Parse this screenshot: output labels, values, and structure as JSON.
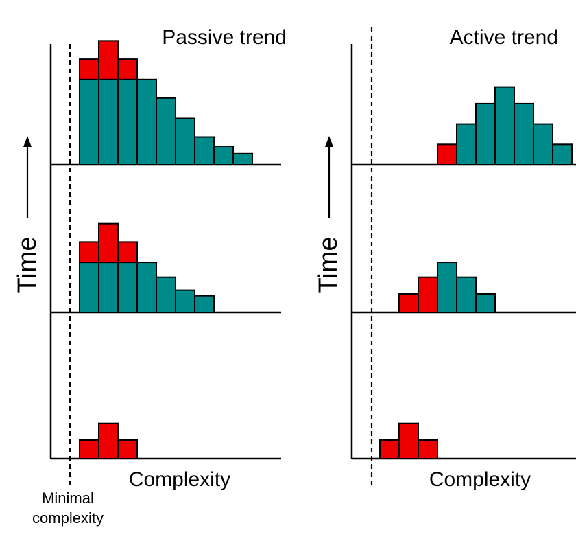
{
  "colors": {
    "background": "#ffffff",
    "red": "#ee0000",
    "teal": "#008b8b",
    "stroke": "#000000"
  },
  "left_panel": {
    "title": "Passive trend",
    "ylabel": "Time",
    "xlabel": "Complexity",
    "minimal_label_line1": "Minimal",
    "minimal_label_line2": "complexity",
    "rows": [
      {
        "red": [
          1,
          1.9,
          1
        ],
        "teal": [
          0,
          0,
          0,
          0,
          0,
          0,
          0,
          0,
          0
        ]
      },
      {
        "red": [
          1,
          1.9,
          1
        ],
        "teal": [
          2.7,
          2.7,
          2.7,
          2.7,
          1.9,
          1.2,
          0.9,
          0,
          0
        ]
      },
      {
        "red": [
          1,
          1.9,
          1
        ],
        "teal": [
          4.6,
          4.6,
          4.6,
          4.6,
          3.6,
          2.5,
          1.5,
          1.0,
          0.6
        ]
      }
    ]
  },
  "right_panel": {
    "title": "Active trend",
    "ylabel": "Time",
    "xlabel": "Complexity",
    "rows": [
      {
        "bars": [
          {
            "col": 0,
            "h": 1.0,
            "c": "red"
          },
          {
            "col": 1,
            "h": 1.9,
            "c": "red"
          },
          {
            "col": 2,
            "h": 1.0,
            "c": "red"
          }
        ]
      },
      {
        "bars": [
          {
            "col": 1,
            "h": 1.0,
            "c": "red"
          },
          {
            "col": 2,
            "h": 1.9,
            "c": "red"
          },
          {
            "col": 3,
            "h": 2.7,
            "c": "teal"
          },
          {
            "col": 4,
            "h": 1.9,
            "c": "teal"
          },
          {
            "col": 5,
            "h": 1.0,
            "c": "teal"
          }
        ]
      },
      {
        "bars": [
          {
            "col": 3,
            "h": 1.1,
            "c": "red"
          },
          {
            "col": 4,
            "h": 2.2,
            "c": "teal"
          },
          {
            "col": 5,
            "h": 3.3,
            "c": "teal"
          },
          {
            "col": 6,
            "h": 4.2,
            "c": "teal"
          },
          {
            "col": 7,
            "h": 3.3,
            "c": "teal"
          },
          {
            "col": 8,
            "h": 2.2,
            "c": "teal"
          },
          {
            "col": 9,
            "h": 1.1,
            "c": "teal"
          }
        ]
      }
    ]
  }
}
